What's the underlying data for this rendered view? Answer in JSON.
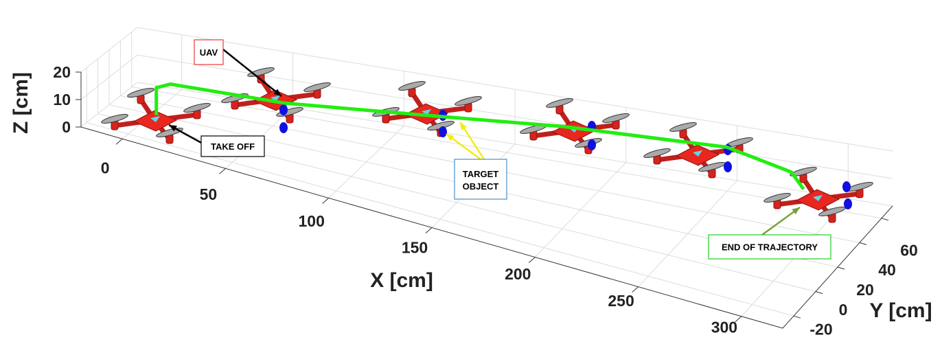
{
  "chart_data": {
    "type": "line3d",
    "x_label": "X [cm]",
    "y_label": "Y [cm]",
    "z_label": "Z [cm]",
    "xlim": [
      -20,
      320
    ],
    "ylim": [
      -30,
      70
    ],
    "zlim": [
      0,
      20
    ],
    "xticks": [
      0,
      50,
      100,
      150,
      200,
      250,
      300
    ],
    "yticks": [
      -20,
      0,
      20,
      40,
      60
    ],
    "zticks": [
      0,
      10,
      20
    ],
    "grid": true,
    "series": [
      {
        "color": "#22ee11",
        "x": [
          2,
          2,
          8,
          59,
          115,
          178,
          250,
          280,
          287
        ],
        "y": [
          20,
          20,
          22,
          30,
          45,
          55,
          60,
          58,
          55
        ],
        "z": [
          0,
          10,
          12,
          12,
          13,
          15,
          16,
          12,
          8
        ]
      }
    ],
    "annotations": [
      {
        "text": "UAV",
        "border": "#e53935",
        "arrow": "#000000"
      },
      {
        "text": "TAKE OFF",
        "border": "#000000",
        "arrow": "#000000"
      },
      {
        "text": "TARGET\nOBJECT",
        "border": "#4a90c8",
        "arrow": "#f5ea14"
      },
      {
        "text": "END OF TRAJECTORY",
        "border": "#22cc22",
        "arrow": "#7aa03a"
      }
    ]
  }
}
